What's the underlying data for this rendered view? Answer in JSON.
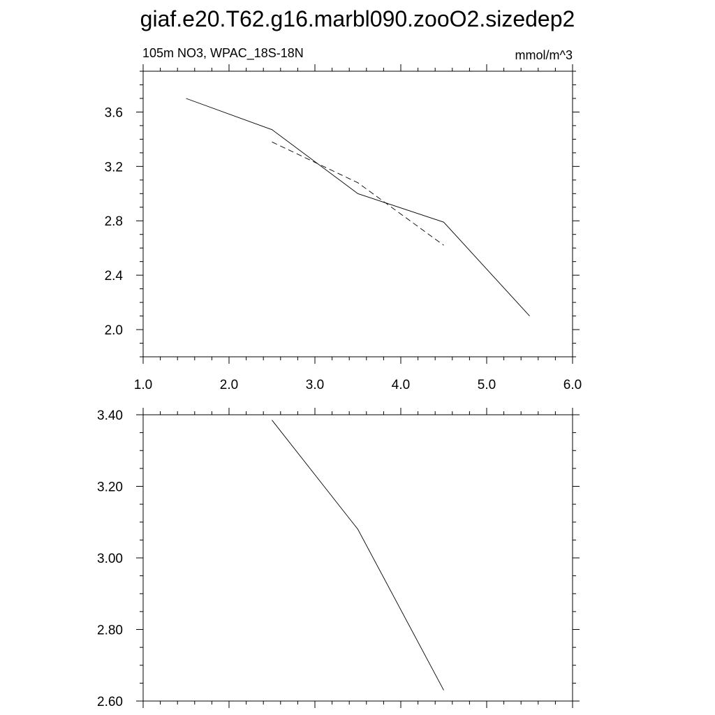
{
  "title": "giaf.e20.T62.g16.marbl090.zooO2.sizedep2",
  "chart_data": [
    {
      "type": "line",
      "left_label": "105m NO3, WPAC_18S-18N",
      "right_label": "mmol/m^3",
      "xlim": [
        1.0,
        6.0
      ],
      "ylim": [
        1.8,
        3.9
      ],
      "x_ticks": [
        "1.0",
        "2.0",
        "3.0",
        "4.0",
        "5.0",
        "6.0"
      ],
      "y_ticks": [
        "2.0",
        "2.4",
        "2.8",
        "3.2",
        "3.6"
      ],
      "series": [
        {
          "style": "solid",
          "x": [
            1.5,
            2.5,
            3.5,
            4.5,
            5.5
          ],
          "y": [
            3.7,
            3.47,
            3.0,
            2.79,
            2.1
          ]
        },
        {
          "style": "dashed",
          "x": [
            2.5,
            3.5,
            4.5
          ],
          "y": [
            3.38,
            3.08,
            2.62
          ]
        }
      ]
    },
    {
      "type": "line",
      "xlim": [
        1.0,
        6.0
      ],
      "ylim": [
        2.6,
        3.4
      ],
      "y_ticks": [
        "2.60",
        "2.80",
        "3.00",
        "3.20",
        "3.40"
      ],
      "series": [
        {
          "style": "solid",
          "x": [
            2.5,
            3.5,
            4.5
          ],
          "y": [
            3.385,
            3.08,
            2.63
          ]
        }
      ]
    }
  ]
}
